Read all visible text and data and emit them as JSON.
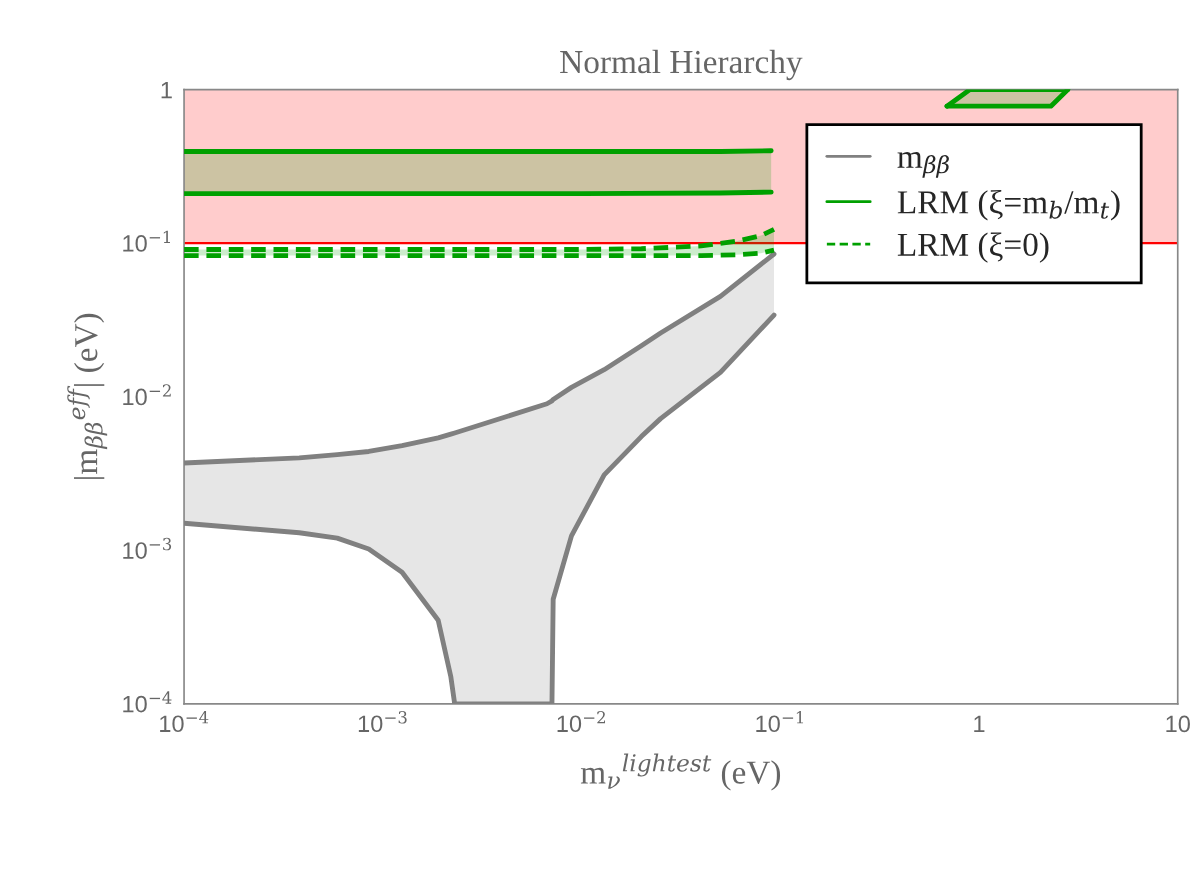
{
  "chart_data": {
    "type": "line",
    "title": "Normal Hierarchy",
    "xlabel": "m$_{ν}$$^{lightest}$ (eV)",
    "ylabel": "|m$_{ββ}$$^{eff}$| (eV)",
    "log": "xy",
    "xlim": [
      0.0001,
      10
    ],
    "ylim": [
      0.0001,
      1
    ],
    "xticks": [
      {
        "value": 0.0001,
        "label": "10$^{−4}$"
      },
      {
        "value": 0.001,
        "label": "10$^{−3}$"
      },
      {
        "value": 0.01,
        "label": "10$^{−2}$"
      },
      {
        "value": 0.1,
        "label": "10$^{−1}$"
      },
      1,
      10
    ],
    "yticks": [
      {
        "value": 0.0001,
        "label": "10$^{−4}$"
      },
      {
        "value": 0.001,
        "label": "10$^{−3}$"
      },
      {
        "value": 0.01,
        "label": "10$^{−2}$"
      },
      {
        "value": 0.1,
        "label": "10$^{−1}$"
      },
      1
    ],
    "grid": false,
    "legend": "top right",
    "bands": [
      {
        "axis": "y",
        "from": 0.1,
        "to": 1,
        "color": "#ffcccc"
      }
    ],
    "ref_lines": [
      {
        "axis": "y",
        "value": 0.1,
        "color": "#ff0000",
        "line_style": "solid"
      }
    ],
    "series": [
      {
        "name": "m$_{ββ}$",
        "color": "#808080",
        "line_style": "solid",
        "x": [
          0.0001,
          0.00038,
          0.00059,
          0.00085,
          0.00125,
          0.0019,
          0.0022,
          0.0023,
          0.0067,
          0.0071,
          0.0072,
          0.0089,
          0.013,
          0.02,
          0.025,
          0.05,
          0.093
        ],
        "values": [
          0.0037,
          0.004,
          0.0042,
          0.0044,
          0.0048,
          0.0054,
          0.0057,
          0.0058,
          0.009,
          0.0094,
          0.0096,
          0.0115,
          0.015,
          0.0215,
          0.026,
          0.045,
          0.085
        ],
        "upper": [
          0.0037,
          0.004,
          0.0042,
          0.0044,
          0.0048,
          0.0054,
          0.0057,
          0.0058,
          0.009,
          0.0094,
          0.0096,
          0.0115,
          0.015,
          0.0215,
          0.026,
          0.045,
          0.085
        ],
        "lower": [
          0.0015,
          0.0013,
          0.0012,
          0.00102,
          0.00072,
          0.00035,
          0.00015,
          0.0001,
          0.0001,
          0.0001,
          0.00048,
          0.00124,
          0.0031,
          0.0055,
          0.0072,
          0.0144,
          0.034
        ]
      },
      {
        "color": "#808080",
        "line_style": "solid",
        "x": [
          0.0001,
          0.00038,
          0.00059,
          0.00085,
          0.00125,
          0.0019,
          0.0022,
          0.0023,
          0.0067,
          0.0071,
          0.0072,
          0.0089,
          0.013,
          0.02,
          0.025,
          0.05,
          0.093
        ],
        "values": [
          0.0015,
          0.0013,
          0.0012,
          0.00102,
          0.00072,
          0.00035,
          0.00015,
          0.0001,
          0.0001,
          0.0001,
          0.00048,
          0.00124,
          0.0031,
          0.0055,
          0.0072,
          0.0144,
          0.034
        ]
      },
      {
        "name": "LRM (ξ=m$_{b}$/m$_{t}$)",
        "color": "#00a000",
        "line_style": "solid",
        "x": [
          0.0001,
          0.001,
          0.01,
          0.05,
          0.09,
          0.3,
          0.69,
          0.9,
          2.3,
          2.8
        ],
        "values": [
          0.395,
          0.395,
          0.395,
          0.395,
          0.4,
          null,
          0.78,
          1,
          1,
          1
        ],
        "upper": [
          0.395,
          0.395,
          0.395,
          0.395,
          0.4,
          null,
          0.78,
          1,
          1,
          1
        ],
        "lower": [
          0.21,
          0.21,
          0.21,
          0.212,
          0.215,
          null,
          0.78,
          0.78,
          0.78,
          1
        ]
      },
      {
        "color": "#00a000",
        "line_style": "solid",
        "x": [
          0.0001,
          0.001,
          0.01,
          0.05,
          0.09,
          0.3,
          0.69,
          0.9,
          2.3,
          2.8
        ],
        "values": [
          0.21,
          0.21,
          0.21,
          0.212,
          0.215,
          null,
          0.78,
          0.78,
          0.78,
          1
        ]
      },
      {
        "name": "LRM (ξ=0)",
        "color": "#00a000",
        "line_style": "dashed",
        "x": [
          0.0001,
          0.001,
          0.01,
          0.02,
          0.04,
          0.06,
          0.08,
          0.093
        ],
        "values": [
          0.091,
          0.091,
          0.091,
          0.092,
          0.096,
          0.103,
          0.112,
          0.123
        ],
        "upper": [
          0.091,
          0.091,
          0.091,
          0.092,
          0.096,
          0.103,
          0.112,
          0.123
        ],
        "lower": [
          0.083,
          0.083,
          0.083,
          0.083,
          0.083,
          0.084,
          0.086,
          0.09
        ]
      },
      {
        "color": "#00a000",
        "line_style": "dashed",
        "x": [
          0.0001,
          0.001,
          0.01,
          0.02,
          0.04,
          0.06,
          0.08,
          0.093
        ],
        "values": [
          0.083,
          0.083,
          0.083,
          0.083,
          0.083,
          0.084,
          0.086,
          0.09
        ]
      }
    ]
  }
}
